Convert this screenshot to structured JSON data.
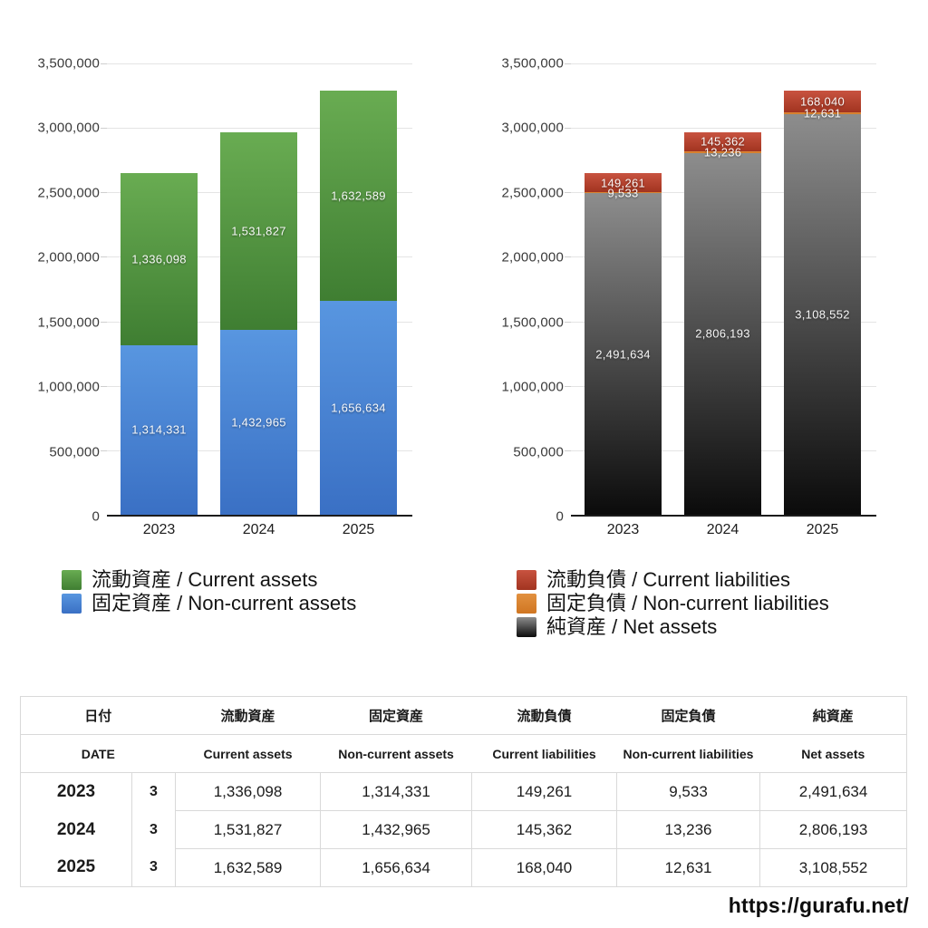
{
  "chart_data": [
    {
      "id": "assets",
      "type": "bar",
      "stacked": true,
      "title": "",
      "categories": [
        "2023",
        "2024",
        "2025"
      ],
      "series": [
        {
          "name": "流動資産 / Current assets",
          "key": "current-assets",
          "color_top": "#69ac52",
          "color_bottom": "#3f7e32",
          "values": [
            1336098,
            1531827,
            1632589
          ]
        },
        {
          "name": "固定資産 / Non-current assets",
          "key": "non-current-assets",
          "color_top": "#5896e0",
          "color_bottom": "#3a70c4",
          "values": [
            1314331,
            1432965,
            1656634
          ]
        }
      ],
      "ylim": [
        0,
        3500000
      ],
      "ytick_step": 500000,
      "ytick_labels": [
        "3,500,000",
        "3,000,000",
        "2,500,000",
        "2,000,000",
        "1,500,000",
        "1,000,000",
        "500,000",
        "0"
      ],
      "grid": true,
      "legend_position": "bottom-left",
      "bar_value_labels": [
        "1,336,098",
        "1,531,827",
        "1,632,589",
        "1,314,331",
        "1,432,965",
        "1,656,634"
      ]
    },
    {
      "id": "liabilities",
      "type": "bar",
      "stacked": true,
      "title": "",
      "categories": [
        "2023",
        "2024",
        "2025"
      ],
      "series": [
        {
          "name": "流動負債 / Current liabilities",
          "key": "current-liabilities",
          "color_top": "#c85340",
          "color_bottom": "#a23420",
          "values": [
            149261,
            145362,
            168040
          ]
        },
        {
          "name": "固定負債 / Non-current liabilities",
          "key": "non-current-liabilities",
          "color_top": "#e29140",
          "color_bottom": "#d07622",
          "values": [
            9533,
            13236,
            12631
          ]
        },
        {
          "name": "純資産 / Net assets",
          "key": "net-assets",
          "color_top": "#8d8d8d",
          "color_bottom": "#0b0b0b",
          "values": [
            2491634,
            2806193,
            3108552
          ]
        }
      ],
      "ylim": [
        0,
        3500000
      ],
      "ytick_step": 500000,
      "ytick_labels": [
        "3,500,000",
        "3,000,000",
        "2,500,000",
        "2,000,000",
        "1,500,000",
        "1,000,000",
        "500,000",
        "0"
      ],
      "grid": true,
      "legend_position": "bottom-left",
      "bar_value_labels": [
        "149,261",
        "145,362",
        "168,040",
        "9,533",
        "13,236",
        "12,631",
        "2,491,634",
        "2,806,193",
        "3,108,552"
      ]
    }
  ],
  "table": {
    "header_jp": [
      "日付",
      "流動資産",
      "固定資産",
      "流動負債",
      "固定負債",
      "純資産"
    ],
    "header_en": [
      "DATE",
      "Current assets",
      "Non-current assets",
      "Current liabilities",
      "Non-current liabilities",
      "Net assets"
    ],
    "rows": [
      [
        "2023",
        "3",
        "1,336,098",
        "1,314,331",
        "149,261",
        "9,533",
        "2,491,634"
      ],
      [
        "2024",
        "3",
        "1,531,827",
        "1,432,965",
        "145,362",
        "13,236",
        "2,806,193"
      ],
      [
        "2025",
        "3",
        "1,632,589",
        "1,656,634",
        "168,040",
        "12,631",
        "3,108,552"
      ]
    ]
  },
  "footer": {
    "url": "https://gurafu.net/"
  },
  "colors": {
    "grid": "#e4e4e4",
    "axis": "#1c1c1c",
    "axis_text": "#3a3a3a",
    "bar_label_text": "#ffffff",
    "table_border": "#d9d9d9"
  }
}
